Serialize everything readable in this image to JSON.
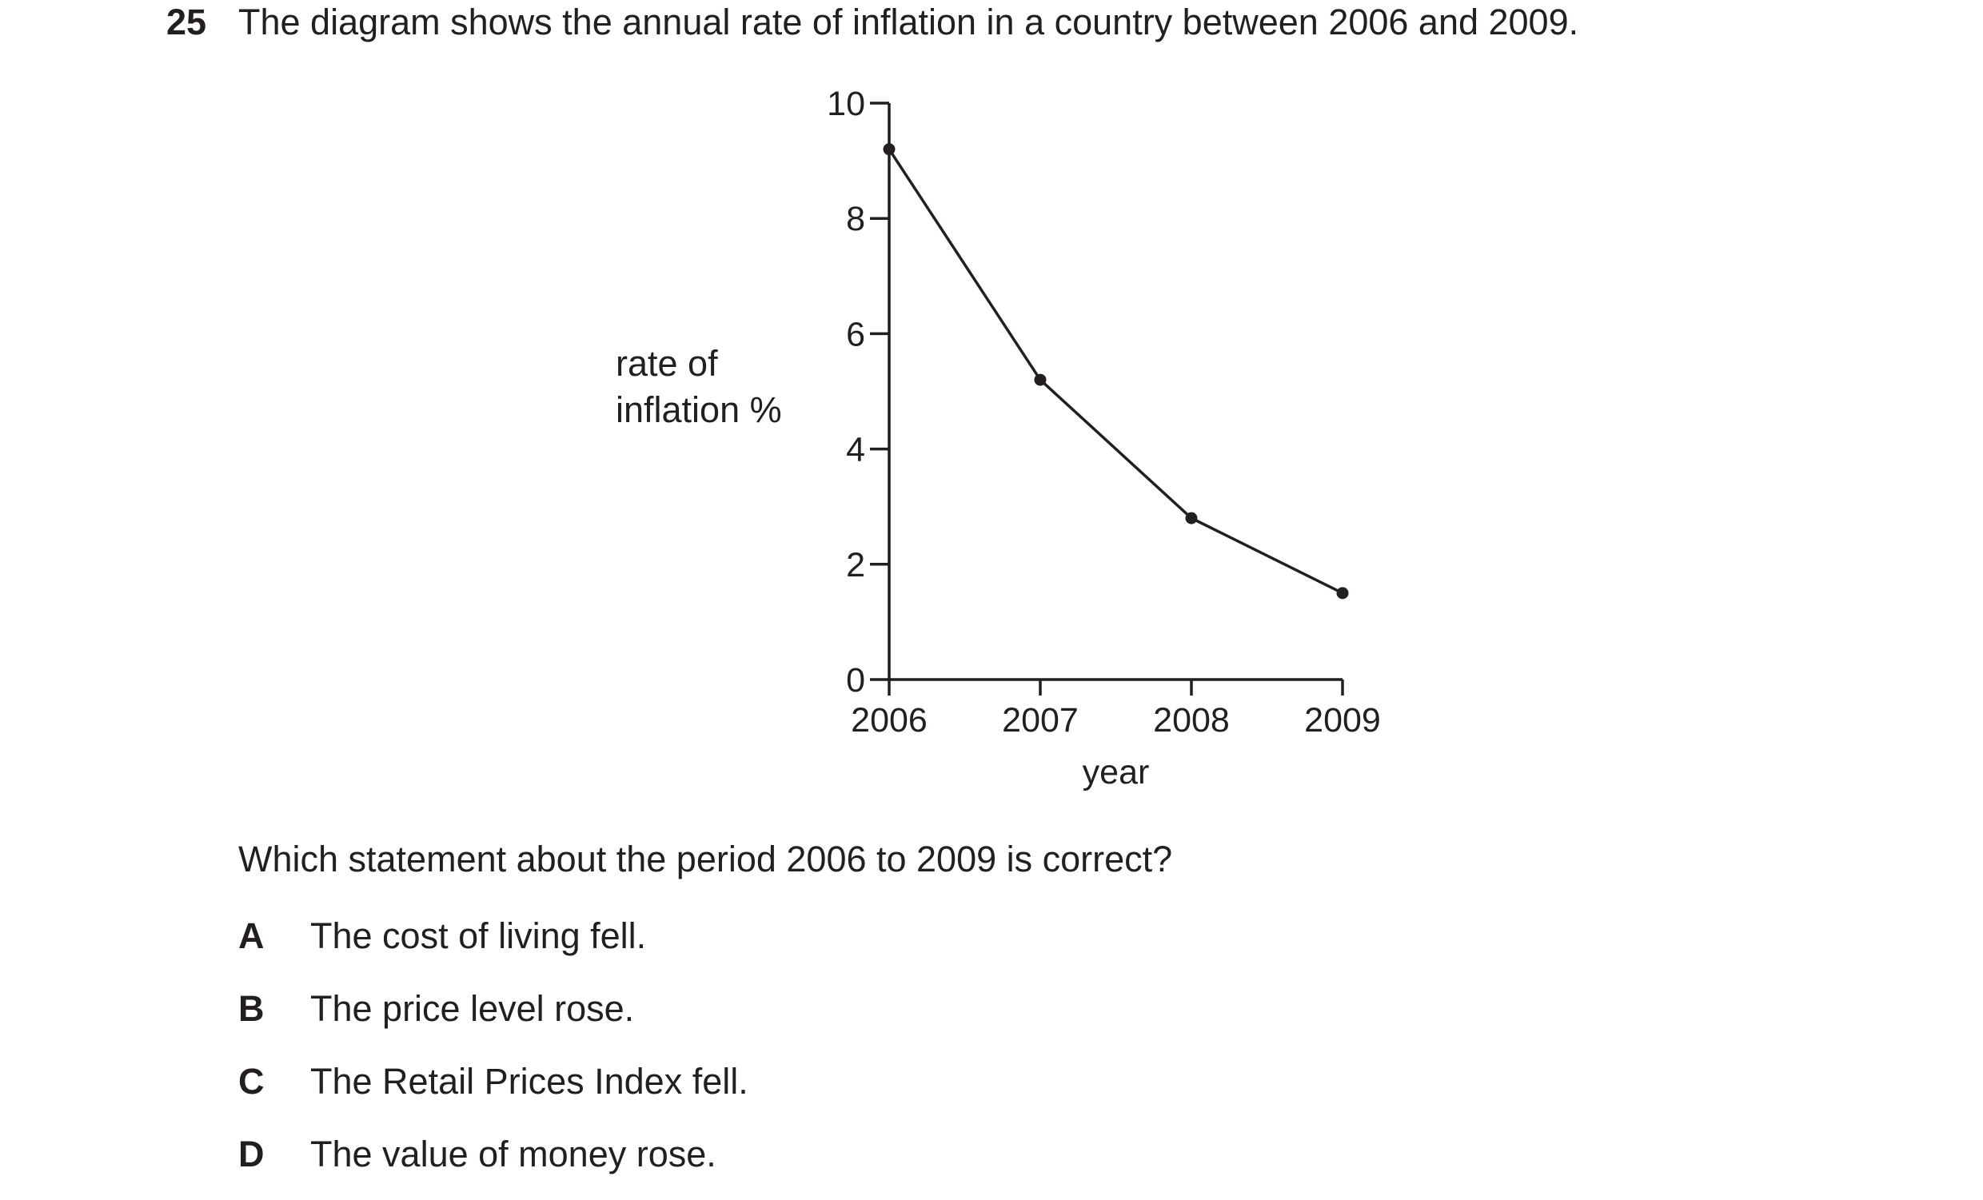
{
  "question": {
    "number": "25",
    "text": "The diagram shows the annual rate of inflation in a country between 2006 and 2009.",
    "prompt": "Which statement about the period 2006 to 2009 is correct?",
    "options": [
      {
        "letter": "A",
        "text": "The cost of living fell."
      },
      {
        "letter": "B",
        "text": "The price level rose."
      },
      {
        "letter": "C",
        "text": "The Retail Prices Index fell."
      },
      {
        "letter": "D",
        "text": "The value of money rose."
      }
    ]
  },
  "chart_data": {
    "type": "line",
    "title": "",
    "ylabel_lines": [
      "rate of",
      "inflation %"
    ],
    "xlabel": "year",
    "x": [
      "2006",
      "2007",
      "2008",
      "2009"
    ],
    "series": [
      {
        "values": [
          9.2,
          5.2,
          2.8,
          1.5
        ]
      }
    ],
    "ylim": [
      0,
      10
    ],
    "yticks": [
      0,
      2,
      4,
      6,
      8,
      10
    ],
    "grid": false,
    "color": "#231f20"
  }
}
